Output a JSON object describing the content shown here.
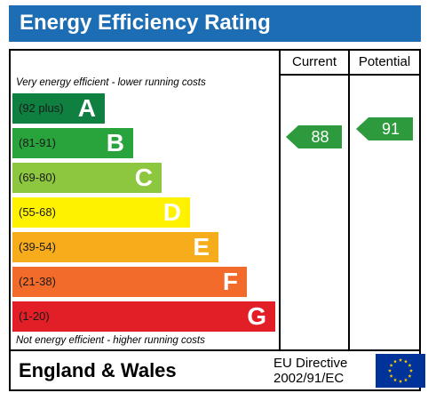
{
  "title": "Energy Efficiency Rating",
  "columns": {
    "current": "Current",
    "potential": "Potential"
  },
  "top_note": "Very energy efficient - lower running costs",
  "bottom_note": "Not energy efficient - higher running costs",
  "bands": [
    {
      "range": "(92 plus)",
      "letter": "A",
      "color": "#0f8040"
    },
    {
      "range": "(81-91)",
      "letter": "B",
      "color": "#29a33b"
    },
    {
      "range": "(69-80)",
      "letter": "C",
      "color": "#8dc63f"
    },
    {
      "range": "(55-68)",
      "letter": "D",
      "color": "#fff200"
    },
    {
      "range": "(39-54)",
      "letter": "E",
      "color": "#f7ac1c"
    },
    {
      "range": "(21-38)",
      "letter": "F",
      "color": "#f26b2b"
    },
    {
      "range": "(1-20)",
      "letter": "G",
      "color": "#e21f26"
    }
  ],
  "current_rating": {
    "value": "88",
    "band": "B",
    "color": "#2c9a3d"
  },
  "potential_rating": {
    "value": "91",
    "band": "B",
    "color": "#2c9a3d"
  },
  "footer": {
    "country": "England & Wales",
    "directive_line1": "EU Directive",
    "directive_line2": "2002/91/EC",
    "flag": "eu-flag-icon"
  }
}
